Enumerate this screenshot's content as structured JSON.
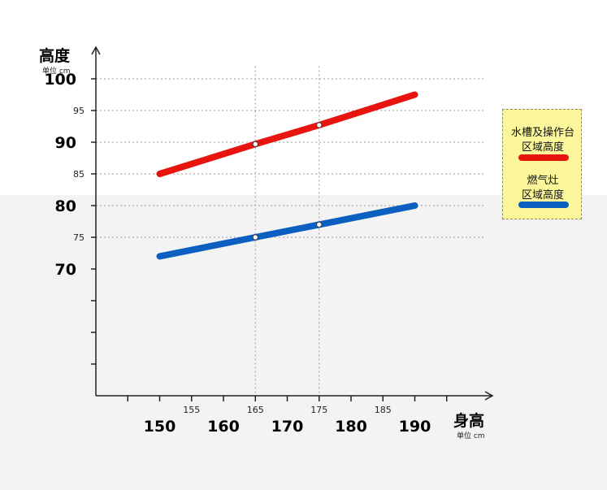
{
  "chart_data": {
    "type": "line",
    "title": "",
    "ylabel": "高度",
    "ylabel_unit": "单位 cm",
    "xlabel": "身高",
    "xlabel_unit": "单位 cm",
    "xlim": [
      140,
      200
    ],
    "ylim": [
      50,
      118
    ],
    "x_major_ticks": [
      "150",
      "160",
      "170",
      "180",
      "190"
    ],
    "x_minor_ticks": [
      "155",
      "165",
      "175",
      "185"
    ],
    "y_major_ticks": [
      "100",
      "90",
      "80",
      "70"
    ],
    "y_minor_ticks": [
      "95",
      "85",
      "75"
    ],
    "grid": "dotted at x=165, 175 and y=75–100",
    "legend_position": "right",
    "series": [
      {
        "name": "水槽及操作台区域高度",
        "color": "#e8150f",
        "x": [
          150,
          165,
          175,
          190
        ],
        "y": [
          85,
          89.7,
          92.7,
          97.5
        ],
        "markers_at": [
          165,
          175
        ]
      },
      {
        "name": "燃气灶区域高度",
        "color": "#0a5fc0",
        "x": [
          150,
          165,
          175,
          190
        ],
        "y": [
          72,
          75,
          77,
          80
        ],
        "markers_at": [
          165,
          175
        ]
      }
    ]
  },
  "legend": {
    "sink_label_line1": "水槽及操作台",
    "sink_label_line2": "区域高度",
    "stove_label_line1": "燃气灶",
    "stove_label_line2": "区域高度"
  }
}
